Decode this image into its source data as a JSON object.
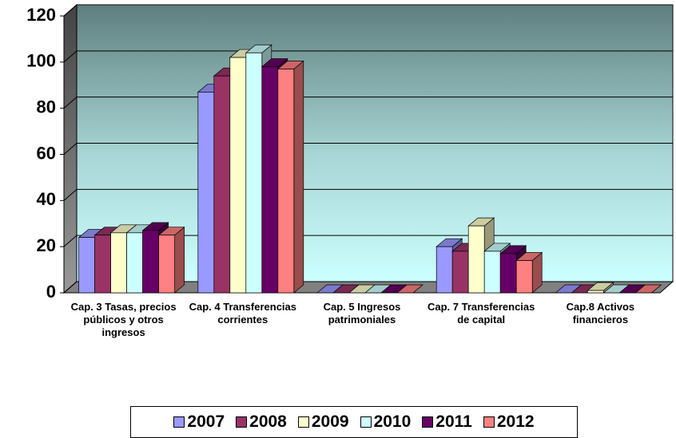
{
  "chart_data": {
    "type": "bar3d",
    "categories": [
      "Cap. 3 Tasas, precios públicos y otros ingresos",
      "Cap. 4 Transferencias corrientes",
      "Cap. 5 Ingresos patrimoniales",
      "Cap. 7 Transferencias de capital",
      "Cap.8 Activos financieros"
    ],
    "series": [
      {
        "name": "2007",
        "color": "#9999ff",
        "values": [
          24,
          87,
          0,
          20,
          0
        ]
      },
      {
        "name": "2008",
        "color": "#993366",
        "values": [
          25,
          94,
          0,
          18,
          0
        ]
      },
      {
        "name": "2009",
        "color": "#ffffcc",
        "values": [
          26,
          102,
          0,
          29,
          1
        ]
      },
      {
        "name": "2010",
        "color": "#ccffff",
        "values": [
          26,
          104,
          0,
          18,
          0
        ]
      },
      {
        "name": "2011",
        "color": "#660066",
        "values": [
          27,
          98,
          0,
          17,
          0
        ]
      },
      {
        "name": "2012",
        "color": "#ff8080",
        "values": [
          25,
          97,
          0,
          14,
          0
        ]
      }
    ],
    "ylim": [
      0,
      120
    ],
    "yticks": [
      0,
      20,
      40,
      60,
      80,
      100,
      120
    ],
    "grid": true,
    "legend": "bottom"
  }
}
